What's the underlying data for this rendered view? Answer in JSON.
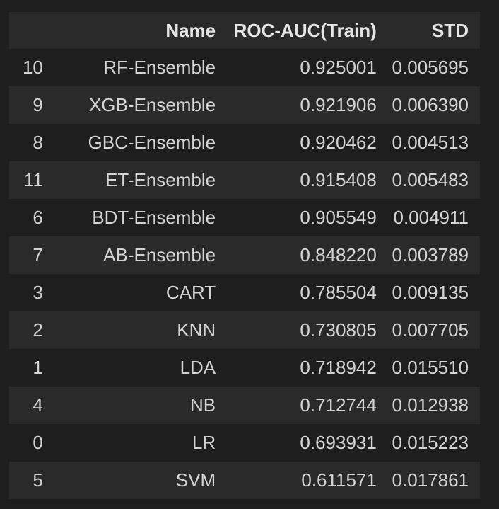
{
  "table": {
    "columns": [
      "",
      "Name",
      "ROC-AUC(Train)",
      "STD"
    ],
    "rows": [
      {
        "index": "10",
        "name": "RF-Ensemble",
        "auc": "0.925001",
        "std": "0.005695"
      },
      {
        "index": "9",
        "name": "XGB-Ensemble",
        "auc": "0.921906",
        "std": "0.006390"
      },
      {
        "index": "8",
        "name": "GBC-Ensemble",
        "auc": "0.920462",
        "std": "0.004513"
      },
      {
        "index": "11",
        "name": "ET-Ensemble",
        "auc": "0.915408",
        "std": "0.005483"
      },
      {
        "index": "6",
        "name": "BDT-Ensemble",
        "auc": "0.905549",
        "std": "0.004911"
      },
      {
        "index": "7",
        "name": "AB-Ensemble",
        "auc": "0.848220",
        "std": "0.003789"
      },
      {
        "index": "3",
        "name": "CART",
        "auc": "0.785504",
        "std": "0.009135"
      },
      {
        "index": "2",
        "name": "KNN",
        "auc": "0.730805",
        "std": "0.007705"
      },
      {
        "index": "1",
        "name": "LDA",
        "auc": "0.718942",
        "std": "0.015510"
      },
      {
        "index": "4",
        "name": "NB",
        "auc": "0.712744",
        "std": "0.012938"
      },
      {
        "index": "0",
        "name": "LR",
        "auc": "0.693931",
        "std": "0.015223"
      },
      {
        "index": "5",
        "name": "SVM",
        "auc": "0.611571",
        "std": "0.017861"
      }
    ]
  },
  "colors": {
    "background": "#1e1e1e",
    "stripe": "#2a2a2a",
    "text": "#d4d4d4"
  }
}
